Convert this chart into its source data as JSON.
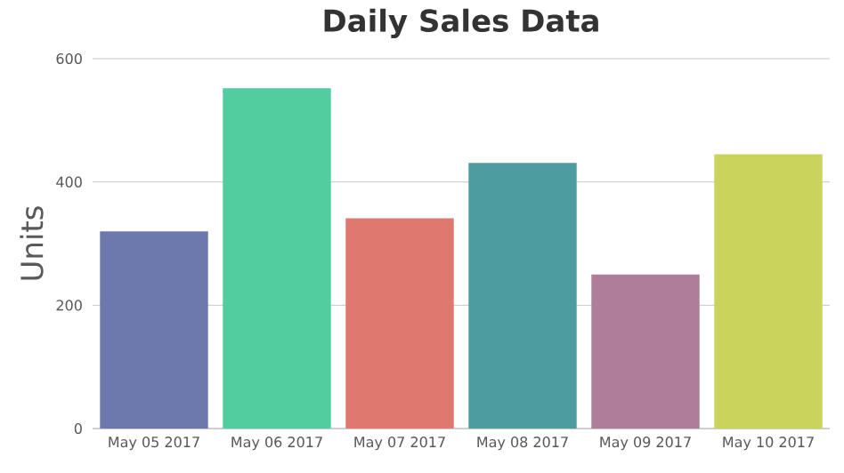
{
  "chart_data": {
    "type": "bar",
    "title": "Daily Sales Data",
    "ylabel": "Units",
    "categories": [
      "May 05 2017",
      "May 06 2017",
      "May 07 2017",
      "May 08 2017",
      "May 09 2017",
      "May 10 2017"
    ],
    "values": [
      320,
      552,
      341,
      431,
      250,
      445
    ],
    "colors": [
      "#6d78ad",
      "#51cda0",
      "#df7970",
      "#4c9ca0",
      "#ae7d99",
      "#c9d45c"
    ],
    "ylim": [
      0,
      600
    ],
    "yticks": [
      0,
      200,
      400,
      600
    ],
    "grid": "y"
  }
}
